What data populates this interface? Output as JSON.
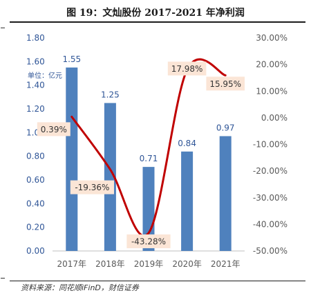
{
  "title": "图 19：文灿股份 2017-2021 年净利润",
  "source": "资料来源：同花顺iFinD，财信证券",
  "chart_data": {
    "type": "bar",
    "title": "图 19：文灿股份 2017-2021 年净利润",
    "unit_label": "单位：亿元",
    "categories": [
      "2017年",
      "2018年",
      "2019年",
      "2020年",
      "2021年"
    ],
    "series": [
      {
        "type": "bar",
        "axis": "left",
        "values": [
          1.55,
          1.25,
          0.71,
          0.84,
          0.97
        ],
        "labels": [
          "1.55",
          "1.25",
          "0.71",
          "0.84",
          "0.97"
        ],
        "color": "#4f81bd"
      },
      {
        "type": "line",
        "axis": "right",
        "smooth": true,
        "values": [
          0.39,
          -19.36,
          -43.28,
          17.98,
          15.95
        ],
        "labels": [
          "0.39%",
          "-19.36%",
          "-43.28%",
          "17.98%",
          "15.95%"
        ],
        "color": "#c00000",
        "label_bg": "#fbe5d6"
      }
    ],
    "y_left": {
      "min": 0,
      "max": 1.8,
      "ticks": [
        "0.00",
        "0.20",
        "0.40",
        "0.60",
        "0.80",
        "1.00",
        "1.20",
        "1.40",
        "1.60",
        "1.80"
      ]
    },
    "y_right": {
      "min": -50,
      "max": 30,
      "ticks": [
        "-50.00%",
        "-40.00%",
        "-30.00%",
        "-20.00%",
        "-10.00%",
        "0.00%",
        "10.00%",
        "20.00%",
        "30.00%"
      ]
    },
    "grid": false,
    "legend": "none"
  }
}
